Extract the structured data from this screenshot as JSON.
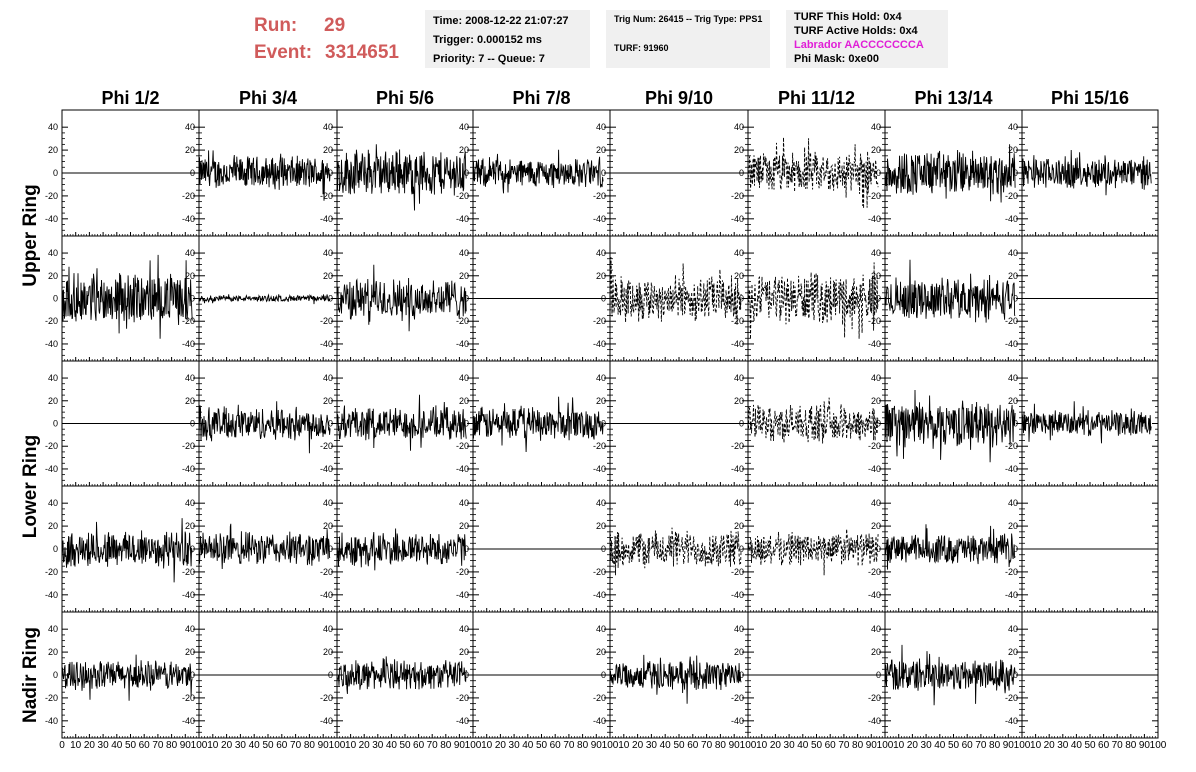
{
  "header": {
    "run_label": "Run:",
    "run_value": "29",
    "event_label": "Event:",
    "event_value": "3314651",
    "time": "Time: 2008-12-22 21:07:27",
    "trigger": "Trigger: 0.000152 ms",
    "priority": "Priority: 7 -- Queue: 7",
    "trig_num": "Trig Num: 26415 -- Trig Type: PPS1",
    "turf": "TURF: 91960",
    "turf_this_hold": "TURF This Hold: 0x4",
    "turf_active_holds": "TURF Active Holds: 0x4",
    "labrador": "Labrador AACCCCCCCA",
    "phi_mask": "Phi Mask: 0xe00",
    "colors": {
      "run_text": "#d05b5b",
      "labrador_text": "#e01fd7",
      "box_bg": "#f0f0f0"
    }
  },
  "chart_data": {
    "type": "line",
    "columns": [
      "Phi 1/2",
      "Phi 3/4",
      "Phi 5/6",
      "Phi 7/8",
      "Phi 9/10",
      "Phi 11/12",
      "Phi 13/14",
      "Phi 15/16"
    ],
    "row_groups": [
      {
        "label": "Upper Ring",
        "rows": [
          0,
          1
        ]
      },
      {
        "label": "Lower Ring",
        "rows": [
          2,
          3
        ]
      },
      {
        "label": "Nadir Ring",
        "rows": [
          4
        ]
      }
    ],
    "xlim": [
      0,
      100
    ],
    "ylim": [
      -55,
      55
    ],
    "x_ticks": [
      "0",
      "10",
      "20",
      "30",
      "40",
      "50",
      "60",
      "70",
      "80",
      "90",
      "100"
    ],
    "y_ticks": [
      "40",
      "20",
      "0",
      "-20",
      "-40"
    ],
    "y_tick_values": [
      40,
      20,
      0,
      -20,
      -40
    ],
    "panels": [
      [
        {
          "amp": 0,
          "style": "solid"
        },
        {
          "amp": 16,
          "style": "solid"
        },
        {
          "amp": 22,
          "style": "solid"
        },
        {
          "amp": 14,
          "style": "solid"
        },
        {
          "amp": 0,
          "style": "solid"
        },
        {
          "amp": 20,
          "style": "dashed"
        },
        {
          "amp": 22,
          "style": "solid"
        },
        {
          "amp": 15,
          "style": "solid"
        }
      ],
      [
        {
          "amp": 24,
          "style": "solid"
        },
        {
          "amp": 3,
          "style": "solid"
        },
        {
          "amp": 20,
          "style": "solid"
        },
        {
          "amp": 0,
          "style": "solid"
        },
        {
          "amp": 22,
          "style": "dashed"
        },
        {
          "amp": 24,
          "style": "dashed"
        },
        {
          "amp": 20,
          "style": "solid"
        },
        {
          "amp": 0,
          "style": "solid"
        }
      ],
      [
        {
          "amp": 0,
          "style": "solid"
        },
        {
          "amp": 16,
          "style": "solid"
        },
        {
          "amp": 16,
          "style": "solid"
        },
        {
          "amp": 16,
          "style": "solid"
        },
        {
          "amp": 0,
          "style": "solid"
        },
        {
          "amp": 18,
          "style": "dashed"
        },
        {
          "amp": 22,
          "style": "solid"
        },
        {
          "amp": 12,
          "style": "solid"
        }
      ],
      [
        {
          "amp": 18,
          "style": "solid"
        },
        {
          "amp": 16,
          "style": "solid"
        },
        {
          "amp": 16,
          "style": "solid"
        },
        {
          "amp": 0,
          "style": "solid"
        },
        {
          "amp": 18,
          "style": "dashed"
        },
        {
          "amp": 16,
          "style": "dashed"
        },
        {
          "amp": 14,
          "style": "solid"
        },
        {
          "amp": 0,
          "style": "solid"
        }
      ],
      [
        {
          "amp": 14,
          "style": "solid"
        },
        {
          "amp": 0,
          "style": "solid"
        },
        {
          "amp": 14,
          "style": "solid"
        },
        {
          "amp": 0,
          "style": "solid"
        },
        {
          "amp": 14,
          "style": "solid"
        },
        {
          "amp": 0,
          "style": "solid"
        },
        {
          "amp": 16,
          "style": "solid"
        },
        {
          "amp": 0,
          "style": "solid"
        }
      ]
    ]
  }
}
